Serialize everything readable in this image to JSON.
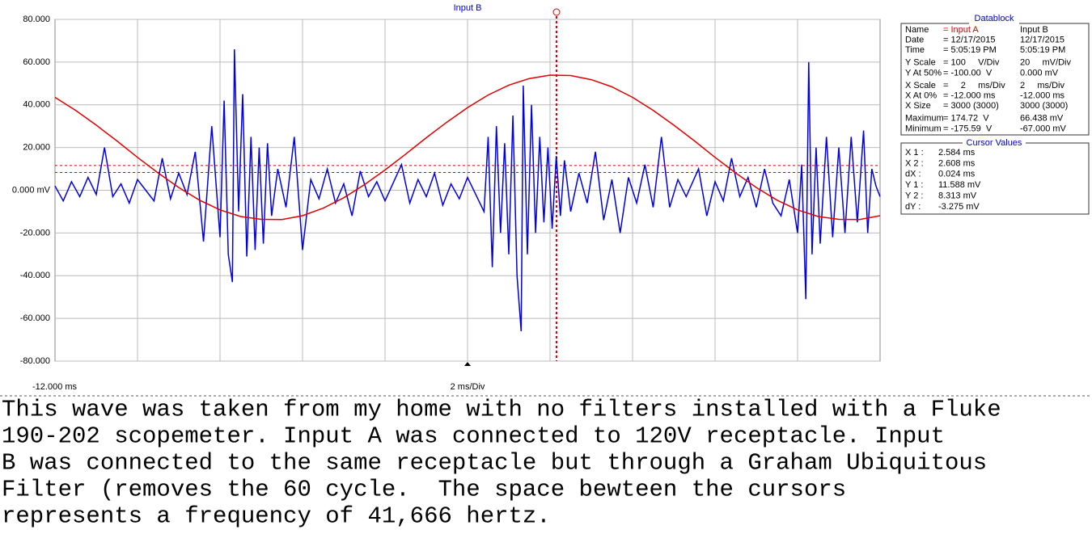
{
  "chart_data": {
    "type": "line",
    "title": "Input B",
    "xlim": [
      -12,
      8
    ],
    "ylim": [
      -80,
      80
    ],
    "yticks": [
      {
        "value": 80,
        "label": "80.000"
      },
      {
        "value": 60,
        "label": "60.000"
      },
      {
        "value": 40,
        "label": "40.000"
      },
      {
        "value": 20,
        "label": "20.000"
      },
      {
        "value": 0,
        "label": "0.000 mV"
      },
      {
        "value": -20,
        "label": "-20.000"
      },
      {
        "value": -40,
        "label": "-40.000"
      },
      {
        "value": -60,
        "label": "-60.000"
      },
      {
        "value": -80,
        "label": "-80.000"
      }
    ],
    "xticks": [
      {
        "value": -12,
        "label": "-12.000 ms"
      }
    ],
    "x_scale_label": "2 ms/Div",
    "grid": true,
    "cursors": [
      11.588,
      8.313
    ],
    "series": [
      {
        "name": "Input A",
        "color": "#e00000",
        "x": [
          -12,
          -11.5,
          -11,
          -10.5,
          -10,
          -9.5,
          -9,
          -8.5,
          -8,
          -7.5,
          -7,
          -6.5,
          -6,
          -5.5,
          -5,
          -4.5,
          -4,
          -3.5,
          -3,
          -2.5,
          -2,
          -1.5,
          -1,
          -0.5,
          0,
          0.5,
          1,
          1.5,
          2,
          2.5,
          3,
          3.5,
          4,
          4.5,
          5,
          5.5,
          6,
          6.5,
          7,
          7.5,
          8
        ],
        "values": [
          43.5,
          37.4,
          30.5,
          23.1,
          15.4,
          8.1,
          1.3,
          -4.6,
          -9.2,
          -12.3,
          -13.6,
          -13.7,
          -11.9,
          -8.4,
          -3.5,
          2.6,
          9.5,
          16.9,
          24.6,
          31.9,
          38.7,
          44.6,
          49.2,
          52.3,
          53.9,
          53.7,
          51.8,
          48.4,
          43.5,
          37.4,
          30.5,
          23.1,
          15.4,
          8.1,
          1.3,
          -4.6,
          -9.2,
          -12.3,
          -13.6,
          -13.7,
          -11.9
        ]
      },
      {
        "name": "Input B",
        "color": "#0000e0",
        "x": [
          -12,
          -11.8,
          -11.6,
          -11.4,
          -11.2,
          -11,
          -10.8,
          -10.6,
          -10.4,
          -10.2,
          -10,
          -9.8,
          -9.6,
          -9.4,
          -9.2,
          -9,
          -8.8,
          -8.6,
          -8.4,
          -8.2,
          -8,
          -7.9,
          -7.8,
          -7.7,
          -7.65,
          -7.55,
          -7.45,
          -7.35,
          -7.25,
          -7.15,
          -7.05,
          -6.95,
          -6.85,
          -6.75,
          -6.6,
          -6.4,
          -6.2,
          -6,
          -5.8,
          -5.6,
          -5.4,
          -5.2,
          -5,
          -4.8,
          -4.6,
          -4.4,
          -4.2,
          -4,
          -3.6,
          -3.4,
          -3.2,
          -3,
          -2.8,
          -2.6,
          -2.4,
          -2.2,
          -2,
          -1.8,
          -1.6,
          -1.5,
          -1.4,
          -1.3,
          -1.2,
          -1.1,
          -1,
          -0.9,
          -0.8,
          -0.7,
          -0.65,
          -0.55,
          -0.45,
          -0.35,
          -0.25,
          -0.15,
          -0.05,
          0.05,
          0.15,
          0.25,
          0.35,
          0.5,
          0.7,
          0.9,
          1.1,
          1.3,
          1.5,
          1.7,
          1.9,
          2.1,
          2.3,
          2.5,
          2.7,
          2.9,
          3.1,
          3.3,
          3.6,
          3.8,
          4,
          4.2,
          4.4,
          4.6,
          4.8,
          5,
          5.2,
          5.4,
          5.6,
          5.8,
          6,
          6.1,
          6.2,
          6.27,
          6.35,
          6.45,
          6.55,
          6.7,
          6.85,
          7,
          7.15,
          7.3,
          7.45,
          7.6,
          7.7,
          7.8,
          7.9,
          8
        ],
        "values": [
          2,
          -5,
          4,
          -3,
          6,
          -2,
          20,
          -3,
          3,
          -6,
          5,
          0,
          -5,
          15,
          -4,
          8,
          -2,
          18,
          -24,
          30,
          -22,
          42,
          -30,
          -43,
          66,
          -10,
          45,
          -31,
          25,
          -28,
          20,
          -25,
          22,
          -12,
          10,
          -8,
          25,
          -28,
          5,
          -4,
          10,
          -6,
          3,
          -12,
          9,
          -3,
          4,
          -5,
          12,
          -6,
          5,
          -3,
          8,
          -7,
          3,
          -4,
          6,
          -2,
          -10,
          25,
          -36,
          30,
          -20,
          22,
          -30,
          35,
          -40,
          -66,
          49,
          -30,
          40,
          -20,
          25,
          -15,
          20,
          -18,
          16,
          -12,
          14,
          -10,
          8,
          -6,
          18,
          -14,
          5,
          -20,
          6,
          -6,
          12,
          -8,
          25,
          -8,
          5,
          -3,
          10,
          -12,
          4,
          -5,
          15,
          -3,
          6,
          -8,
          10,
          -6,
          -12,
          5,
          -20,
          12,
          -51,
          60,
          -30,
          20,
          -25,
          25,
          -22,
          20,
          -20,
          25,
          -15,
          28,
          -20,
          10,
          2,
          -3
        ]
      }
    ]
  },
  "datablock": {
    "title": "Datablock",
    "rows": [
      [
        "Name",
        "= Input A",
        "Input B"
      ],
      [
        "Date",
        "= 12/17/2015",
        "12/17/2015"
      ],
      [
        "Time",
        "= 5:05:19 PM",
        "5:05:19 PM"
      ],
      [
        "Y Scale",
        "= 100     V/Div",
        "20     mV/Div"
      ],
      [
        "Y At 50%",
        "= -100.00  V",
        "0.000 mV"
      ],
      [
        "X Scale",
        "=     2     ms/Div",
        "2     ms/Div"
      ],
      [
        "X At 0%",
        "= -12.000 ms",
        "-12.000 ms"
      ],
      [
        "X Size",
        "= 3000 (3000)",
        "3000 (3000)"
      ],
      [
        "Maximum",
        "= 174.72  V",
        "66.438 mV"
      ],
      [
        "Minimum",
        "= -175.59  V",
        "-67.000 mV"
      ]
    ]
  },
  "cursor_values": {
    "title": "Cursor Values",
    "rows": [
      [
        "X 1 :",
        "2.584 ms"
      ],
      [
        "X 2 :",
        "2.608 ms"
      ],
      [
        "dX :",
        "0.024 ms"
      ],
      [
        "Y 1 :",
        "11.588 mV"
      ],
      [
        "Y 2 :",
        "8.313 mV"
      ],
      [
        "dY :",
        "-3.275 mV"
      ]
    ]
  },
  "caption": {
    "lines": [
      "This wave was taken from my home with no filters installed with a Fluke",
      "190-202 scopemeter. Input A was connected to 120V receptacle. Input",
      "B was connected to the same receptacle but through a Graham Ubiquitous",
      "Filter (removes the 60 cycle.  The space bewteen the cursors",
      "represents a frequency of 41,666 hertz."
    ]
  }
}
